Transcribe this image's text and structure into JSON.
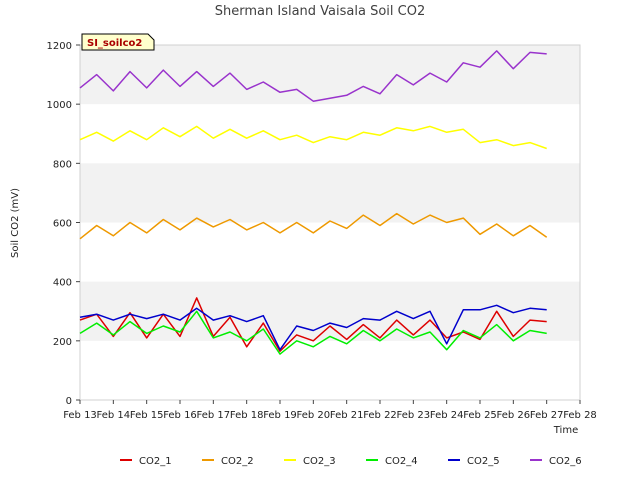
{
  "chart_data": {
    "type": "line",
    "title": "Sherman Island Vaisala Soil CO2",
    "xlabel": "Time",
    "ylabel": "Soil CO2 (mV)",
    "tag": "SI_soilco2",
    "x_ticks": [
      "Feb 13",
      "Feb 14",
      "Feb 15",
      "Feb 16",
      "Feb 17",
      "Feb 18",
      "Feb 19",
      "Feb 20",
      "Feb 21",
      "Feb 22",
      "Feb 23",
      "Feb 24",
      "Feb 25",
      "Feb 26",
      "Feb 27",
      "Feb 28"
    ],
    "y_ticks": [
      "0",
      "200",
      "400",
      "600",
      "800",
      "1000",
      "1200"
    ],
    "xlim": [
      13,
      28
    ],
    "ylim": [
      0,
      1200
    ],
    "grid": true,
    "legend_position": "bottom",
    "x": [
      13.0,
      13.5,
      14.0,
      14.5,
      15.0,
      15.5,
      16.0,
      16.5,
      17.0,
      17.5,
      18.0,
      18.5,
      19.0,
      19.5,
      20.0,
      20.5,
      21.0,
      21.5,
      22.0,
      22.5,
      23.0,
      23.5,
      24.0,
      24.5,
      25.0,
      25.5,
      26.0,
      26.5,
      27.0
    ],
    "series": [
      {
        "name": "CO2_1",
        "color": "#dd0000",
        "values": [
          270,
          290,
          215,
          295,
          210,
          290,
          215,
          345,
          215,
          280,
          180,
          260,
          165,
          220,
          200,
          250,
          205,
          255,
          210,
          270,
          220,
          270,
          210,
          230,
          205,
          300,
          215,
          270,
          265
        ]
      },
      {
        "name": "CO2_2",
        "color": "#ee9900",
        "values": [
          545,
          590,
          555,
          600,
          565,
          610,
          575,
          615,
          585,
          610,
          575,
          600,
          565,
          600,
          565,
          605,
          580,
          625,
          590,
          630,
          595,
          625,
          600,
          615,
          560,
          595,
          555,
          590,
          550
        ]
      },
      {
        "name": "CO2_3",
        "color": "#ffff00",
        "values": [
          880,
          905,
          875,
          910,
          880,
          920,
          890,
          925,
          885,
          915,
          885,
          910,
          880,
          895,
          870,
          890,
          880,
          905,
          895,
          920,
          910,
          925,
          905,
          915,
          870,
          880,
          860,
          870,
          850
        ]
      },
      {
        "name": "CO2_4",
        "color": "#00ee00",
        "values": [
          225,
          260,
          220,
          265,
          225,
          250,
          230,
          300,
          210,
          230,
          200,
          240,
          155,
          200,
          180,
          215,
          190,
          235,
          200,
          240,
          210,
          230,
          170,
          235,
          210,
          255,
          200,
          235,
          225
        ]
      },
      {
        "name": "CO2_5",
        "color": "#0000cc",
        "values": [
          280,
          290,
          270,
          290,
          275,
          290,
          270,
          310,
          270,
          285,
          265,
          285,
          170,
          250,
          235,
          260,
          245,
          275,
          270,
          300,
          275,
          300,
          190,
          305,
          305,
          320,
          295,
          310,
          305
        ]
      },
      {
        "name": "CO2_6",
        "color": "#9933cc",
        "values": [
          1055,
          1100,
          1045,
          1110,
          1055,
          1115,
          1060,
          1110,
          1060,
          1105,
          1050,
          1075,
          1040,
          1050,
          1010,
          1020,
          1030,
          1060,
          1035,
          1100,
          1065,
          1105,
          1075,
          1140,
          1125,
          1180,
          1120,
          1175,
          1170
        ]
      }
    ]
  }
}
